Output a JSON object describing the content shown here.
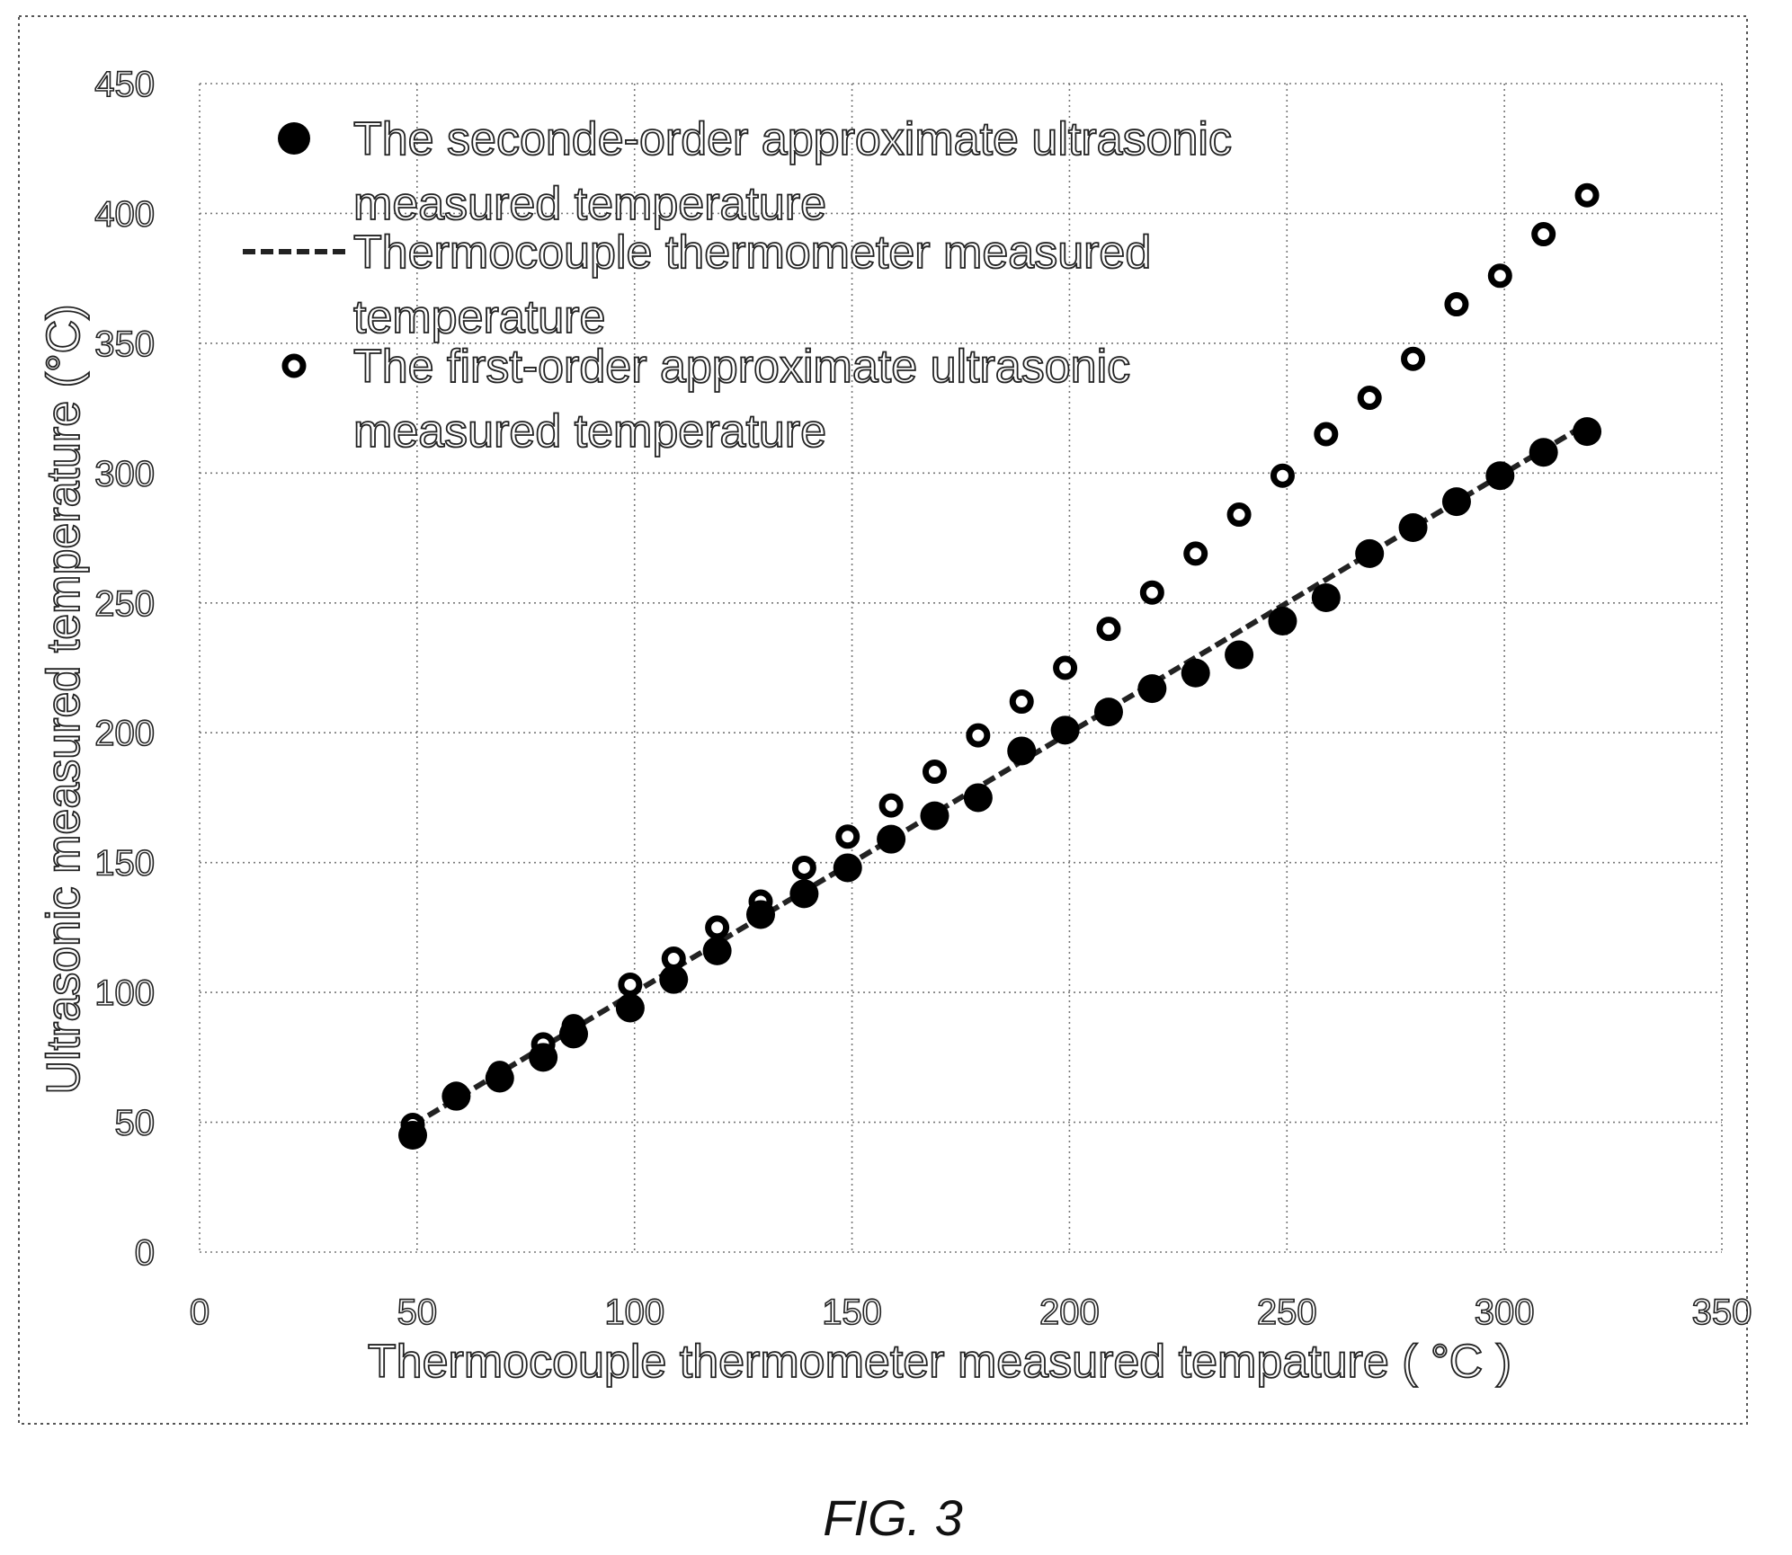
{
  "chart_data": {
    "type": "scatter",
    "xlabel": "Thermocouple thermometer measured tempature ( °C )",
    "ylabel": "Ultrasonic measured temperature (°C)",
    "xlim": [
      0,
      350
    ],
    "ylim": [
      0,
      450
    ],
    "x_ticks": [
      "0",
      "50",
      "100",
      "150",
      "200",
      "250",
      "300",
      "350"
    ],
    "y_ticks": [
      "0",
      "50",
      "100",
      "150",
      "200",
      "250",
      "300",
      "350",
      "400",
      "450"
    ],
    "grid": true,
    "legend_position": "top-left",
    "caption": "FIG. 3",
    "series": [
      {
        "name": "The seconde-order approximate ultrasonic measured temperature",
        "legend_lines": [
          "The seconde-order approximate ultrasonic",
          "measured temperature"
        ],
        "marker": "filled-circle",
        "x": [
          49,
          59,
          69,
          79,
          86,
          99,
          109,
          119,
          129,
          139,
          149,
          159,
          169,
          179,
          189,
          199,
          209,
          219,
          229,
          239,
          249,
          259,
          269,
          279,
          289,
          299,
          309,
          319
        ],
        "y": [
          45,
          60,
          67,
          75,
          84,
          94,
          105,
          116,
          130,
          138,
          148,
          159,
          168,
          175,
          193,
          201,
          208,
          217,
          223,
          230,
          243,
          252,
          269,
          279,
          289,
          299,
          308,
          316
        ]
      },
      {
        "name": "Thermocouple thermometer measured temperature",
        "legend_lines": [
          "Thermocouple thermometer measured",
          "temperature"
        ],
        "marker": "dashed-line",
        "x": [
          49,
          319
        ],
        "y": [
          49,
          319
        ]
      },
      {
        "name": "The first-order approximate ultrasonic measured temperature",
        "legend_lines": [
          "The first-order approximate ultrasonic",
          "measured temperature"
        ],
        "marker": "hollow-circle",
        "x": [
          49,
          59,
          69,
          79,
          86,
          99,
          109,
          119,
          129,
          139,
          149,
          159,
          169,
          179,
          189,
          199,
          209,
          219,
          229,
          239,
          249,
          259,
          269,
          279,
          289,
          299,
          309,
          319
        ],
        "y": [
          49,
          61,
          69,
          80,
          87,
          103,
          113,
          125,
          135,
          148,
          160,
          172,
          185,
          199,
          212,
          225,
          240,
          254,
          269,
          284,
          299,
          315,
          329,
          344,
          365,
          376,
          392,
          407
        ]
      }
    ]
  }
}
